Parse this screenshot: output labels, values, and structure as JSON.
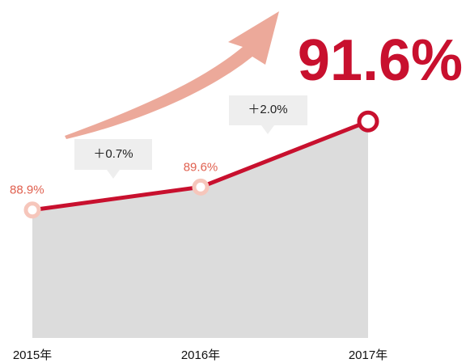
{
  "chart_data": {
    "type": "area",
    "categories": [
      "2015年",
      "2016年",
      "2017年"
    ],
    "values": [
      88.9,
      89.6,
      91.6
    ],
    "value_labels": [
      "88.9%",
      "89.6%",
      "91.6%"
    ],
    "annotations": [
      "＋0.7%",
      "＋2.0%"
    ],
    "color": "#c8102e",
    "fill": "#dcdcdc",
    "ylim": [
      85,
      92
    ]
  }
}
